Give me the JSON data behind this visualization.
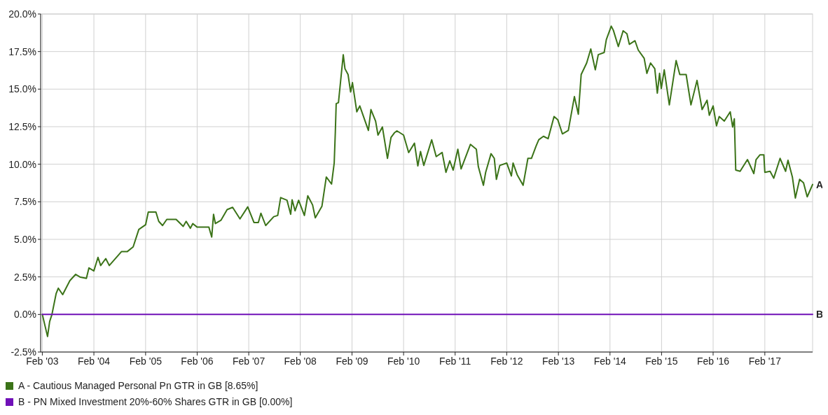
{
  "chart_data": {
    "type": "line",
    "xlim": [
      "2003-01-20",
      "2018-01-05"
    ],
    "ylim": [
      -2.5,
      20
    ],
    "xticks": [
      {
        "value": "2003-02-01",
        "label": "Feb '03"
      },
      {
        "value": "2004-02-01",
        "label": "Feb '04"
      },
      {
        "value": "2005-02-01",
        "label": "Feb '05"
      },
      {
        "value": "2006-02-01",
        "label": "Feb '06"
      },
      {
        "value": "2007-02-01",
        "label": "Feb '07"
      },
      {
        "value": "2008-02-01",
        "label": "Feb '08"
      },
      {
        "value": "2009-02-01",
        "label": "Feb '09"
      },
      {
        "value": "2010-02-01",
        "label": "Feb '10"
      },
      {
        "value": "2011-02-01",
        "label": "Feb '11"
      },
      {
        "value": "2012-02-01",
        "label": "Feb '12"
      },
      {
        "value": "2013-02-01",
        "label": "Feb '13"
      },
      {
        "value": "2014-02-01",
        "label": "Feb '14"
      },
      {
        "value": "2015-02-01",
        "label": "Feb '15"
      },
      {
        "value": "2016-02-01",
        "label": "Feb '16"
      },
      {
        "value": "2017-02-01",
        "label": "Feb '17"
      }
    ],
    "yticks": [
      {
        "value": -2.5,
        "label": "-2.5%"
      },
      {
        "value": 0,
        "label": "0.0%"
      },
      {
        "value": 2.5,
        "label": "2.5%"
      },
      {
        "value": 5,
        "label": "5.0%"
      },
      {
        "value": 7.5,
        "label": "7.5%"
      },
      {
        "value": 10,
        "label": "10.0%"
      },
      {
        "value": 12.5,
        "label": "12.5%"
      },
      {
        "value": 15,
        "label": "15.0%"
      },
      {
        "value": 17.5,
        "label": "17.5%"
      },
      {
        "value": 20,
        "label": "20.0%"
      }
    ],
    "grid": true,
    "legend": "bottom",
    "line_style": "solid",
    "marker": "none",
    "annotations": [
      {
        "text": "A",
        "x": "2018-01-05",
        "y": 8.65
      },
      {
        "text": "B",
        "x": "2018-01-05",
        "y": 0
      }
    ],
    "series": [
      {
        "name": "A - Cautious Managed Personal Pn GTR in GB [8.65%]",
        "color": "#3b7318",
        "x": [
          "2003-02-01",
          "2003-03-10",
          "2003-03-25",
          "2003-04-10",
          "2003-05-10",
          "2003-05-25",
          "2003-06-25",
          "2003-08-15",
          "2003-09-25",
          "2003-10-28",
          "2003-12-10",
          "2003-12-28",
          "2004-02-01",
          "2004-03-01",
          "2004-03-20",
          "2004-04-25",
          "2004-05-20",
          "2004-08-15",
          "2004-09-25",
          "2004-11-05",
          "2004-12-15",
          "2005-02-01",
          "2005-02-20",
          "2005-04-15",
          "2005-05-05",
          "2005-06-01",
          "2005-07-01",
          "2005-09-05",
          "2005-10-25",
          "2005-11-15",
          "2005-12-15",
          "2006-01-01",
          "2006-02-01",
          "2006-04-25",
          "2006-05-15",
          "2006-05-28",
          "2006-06-10",
          "2006-07-20",
          "2006-09-01",
          "2006-10-10",
          "2006-12-01",
          "2007-01-25",
          "2007-03-10",
          "2007-04-10",
          "2007-04-28",
          "2007-06-01",
          "2007-07-28",
          "2007-08-25",
          "2007-09-15",
          "2007-10-30",
          "2007-11-25",
          "2007-12-05",
          "2007-12-26",
          "2008-01-20",
          "2008-03-01",
          "2008-03-25",
          "2008-04-28",
          "2008-05-17",
          "2008-07-03",
          "2008-08-03",
          "2008-09-09",
          "2008-09-28",
          "2008-10-06",
          "2008-10-12",
          "2008-10-28",
          "2008-12-01",
          "2008-12-13",
          "2009-01-04",
          "2009-01-22",
          "2009-02-04",
          "2009-03-07",
          "2009-03-28",
          "2009-05-28",
          "2009-06-15",
          "2009-07-18",
          "2009-08-04",
          "2009-09-04",
          "2009-10-10",
          "2009-11-04",
          "2009-11-28",
          "2009-12-16",
          "2010-02-01",
          "2010-03-09",
          "2010-04-19",
          "2010-05-13",
          "2010-06-01",
          "2010-06-24",
          "2010-08-19",
          "2010-09-20",
          "2010-11-01",
          "2010-11-28",
          "2010-12-25",
          "2011-01-18",
          "2011-02-20",
          "2011-03-15",
          "2011-05-20",
          "2011-07-01",
          "2011-07-15",
          "2011-08-20",
          "2011-09-05",
          "2011-10-13",
          "2011-11-05",
          "2011-11-20",
          "2011-12-14",
          "2012-02-01",
          "2012-03-05",
          "2012-03-17",
          "2012-04-15",
          "2012-05-27",
          "2012-06-30",
          "2012-07-25",
          "2012-08-28",
          "2012-09-15",
          "2012-10-18",
          "2012-11-20",
          "2013-01-01",
          "2013-01-28",
          "2013-03-01",
          "2013-04-12",
          "2013-05-25",
          "2013-06-22",
          "2013-07-12",
          "2013-08-20",
          "2013-09-18",
          "2013-10-20",
          "2013-11-10",
          "2013-12-22",
          "2014-01-06",
          "2014-02-10",
          "2014-02-25",
          "2014-04-01",
          "2014-05-05",
          "2014-06-01",
          "2014-06-18",
          "2014-07-28",
          "2014-08-20",
          "2014-10-01",
          "2014-10-20",
          "2014-11-15",
          "2014-12-15",
          "2015-01-02",
          "2015-01-18",
          "2015-01-30",
          "2015-02-20",
          "2015-03-28",
          "2015-05-15",
          "2015-06-10",
          "2015-07-25",
          "2015-08-28",
          "2015-10-10",
          "2015-11-15",
          "2015-12-20",
          "2016-01-05",
          "2016-02-01",
          "2016-02-25",
          "2016-03-15",
          "2016-04-20",
          "2016-06-01",
          "2016-06-18",
          "2016-06-30",
          "2016-07-10",
          "2016-08-10",
          "2016-10-01",
          "2016-11-15",
          "2016-12-01",
          "2016-12-28",
          "2017-01-25",
          "2017-02-01",
          "2017-03-10",
          "2017-04-05",
          "2017-05-20",
          "2017-06-28",
          "2017-07-15",
          "2017-08-15",
          "2017-09-05",
          "2017-10-05",
          "2017-11-02",
          "2017-11-28",
          "2018-01-05"
        ],
        "values": [
          0,
          -1.47,
          -0.47,
          0,
          1.4,
          1.75,
          1.32,
          2.25,
          2.67,
          2.48,
          2.4,
          3.1,
          2.9,
          3.8,
          3.26,
          3.72,
          3.26,
          4.19,
          4.19,
          4.5,
          5.66,
          5.97,
          6.82,
          6.82,
          6.2,
          5.92,
          6.33,
          6.33,
          5.86,
          6.2,
          5.74,
          6.05,
          5.81,
          5.81,
          5.15,
          6.67,
          6.05,
          6.28,
          6.98,
          7.13,
          6.36,
          7.16,
          6.12,
          6.12,
          6.74,
          5.92,
          6.51,
          6.59,
          7.78,
          7.6,
          6.67,
          7.63,
          6.9,
          7.6,
          6.59,
          7.9,
          7.29,
          6.43,
          7.2,
          9.15,
          8.68,
          10.08,
          12.17,
          14.03,
          14.1,
          17.29,
          16.36,
          15.97,
          14.81,
          15.43,
          13.49,
          13.88,
          12.25,
          13.64,
          12.87,
          11.94,
          12.48,
          10.39,
          11.78,
          12.09,
          12.22,
          11.94,
          10.78,
          11.4,
          9.89,
          10.85,
          9.92,
          11.63,
          10.51,
          10.78,
          9.46,
          10.23,
          9.61,
          11.0,
          9.69,
          11.32,
          11.0,
          9.84,
          8.6,
          9.46,
          10.7,
          10.39,
          8.99,
          9.92,
          10.08,
          9.22,
          10.08,
          9.3,
          8.6,
          10.39,
          10.39,
          11.24,
          11.63,
          11.86,
          11.7,
          13.18,
          12.95,
          12.02,
          12.25,
          14.5,
          13.33,
          15.97,
          16.74,
          17.67,
          16.28,
          17.29,
          17.44,
          18.29,
          19.19,
          18.91,
          17.83,
          18.88,
          18.68,
          17.98,
          18.22,
          17.6,
          17.05,
          16.05,
          16.74,
          16.36,
          14.73,
          16.05,
          15.04,
          16.28,
          13.95,
          16.9,
          15.97,
          15.97,
          13.95,
          15.58,
          13.64,
          14.26,
          13.26,
          13.88,
          12.56,
          13.18,
          12.87,
          13.49,
          12.48,
          13.02,
          9.61,
          9.53,
          10.31,
          9.38,
          10.31,
          10.62,
          10.62,
          9.46,
          9.53,
          9.07,
          10.39,
          9.53,
          10.26,
          9.15,
          7.75,
          8.99,
          8.76,
          7.83,
          8.65
        ]
      },
      {
        "name": "B - PN Mixed Investment 20%-60% Shares GTR in GB [0.00%]",
        "color": "#7010b8",
        "x": [
          "2003-02-01",
          "2018-01-05"
        ],
        "values": [
          0,
          0
        ]
      }
    ]
  }
}
